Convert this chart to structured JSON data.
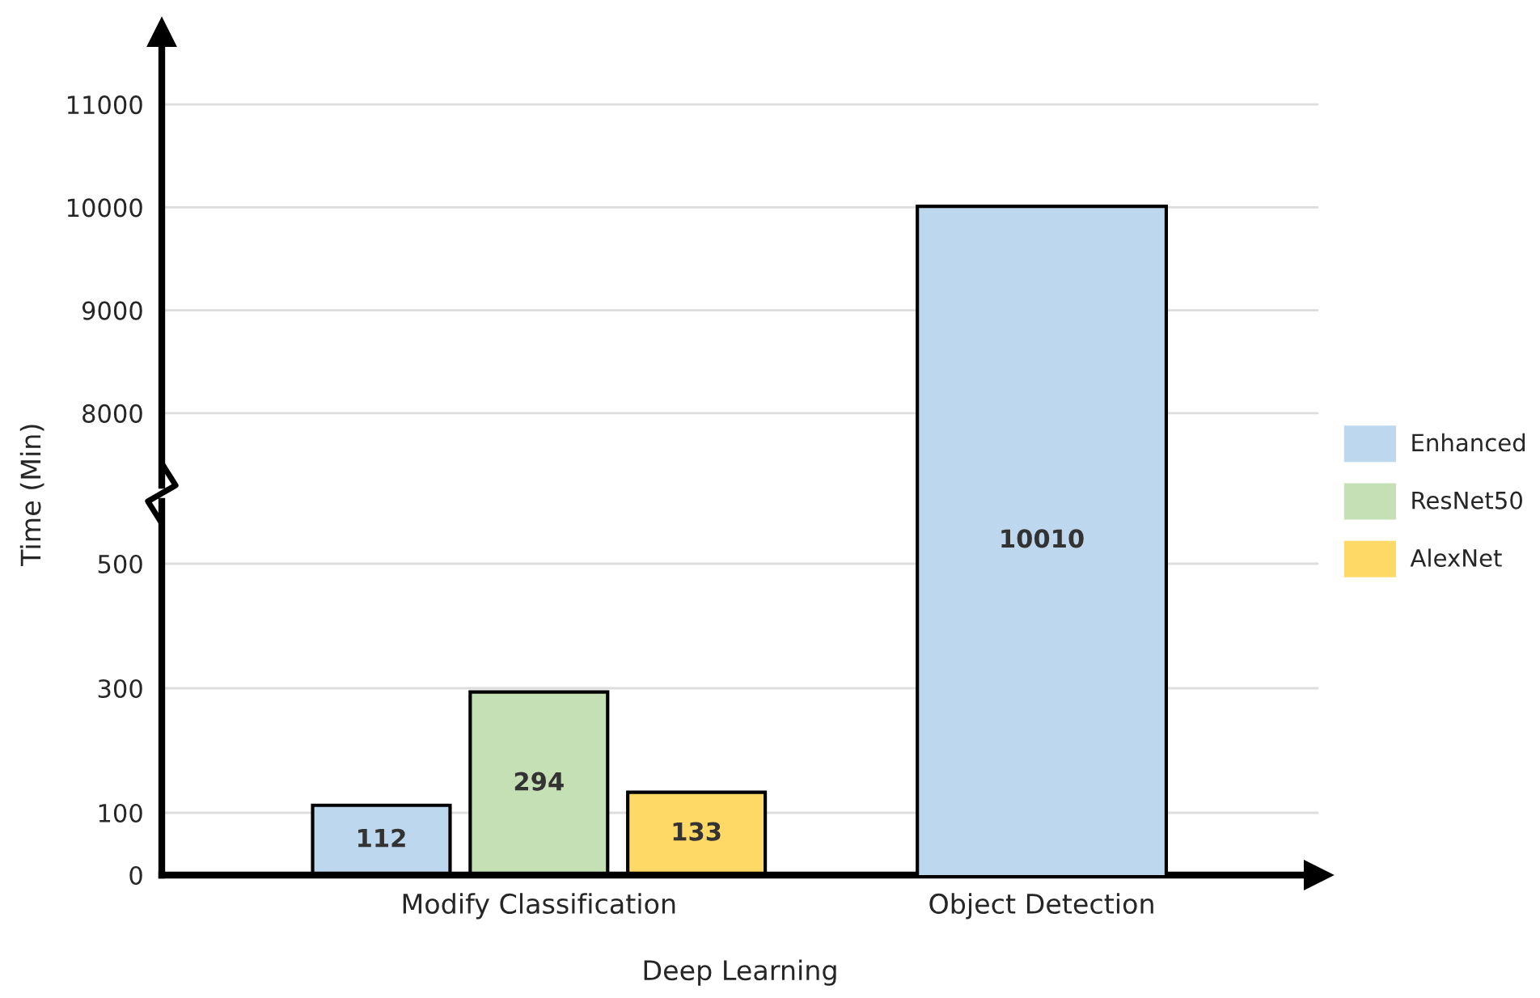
{
  "chart_data": [
    {
      "type": "bar",
      "ylabel": "Time (Min)",
      "series": [
        {
          "color": "#bdd7ee",
          "values": [
            null,
            10010
          ]
        }
      ],
      "ylim": [
        7300,
        11700
      ],
      "yticks": [
        8000,
        9000,
        10000,
        11000
      ],
      "grid": "y",
      "tick_labels": "y",
      "data_labels": true
    },
    {
      "type": "bar",
      "xlabel": "Deep Learning",
      "categories": [
        "Modify Classification",
        "Object Detection"
      ],
      "series": [
        {
          "name": "Enhanced",
          "color": "#bdd7ee",
          "values": [
            112,
            null
          ]
        },
        {
          "name": "ResNet50",
          "color": "#c5e0b4",
          "values": [
            294,
            null
          ]
        },
        {
          "name": "AlexNet",
          "color": "#ffd966",
          "values": [
            133,
            null
          ]
        }
      ],
      "ylim": [
        0,
        600
      ],
      "yticks": [
        0,
        100,
        300,
        500
      ],
      "grid": "y",
      "legend": "right",
      "data_labels": true
    }
  ]
}
